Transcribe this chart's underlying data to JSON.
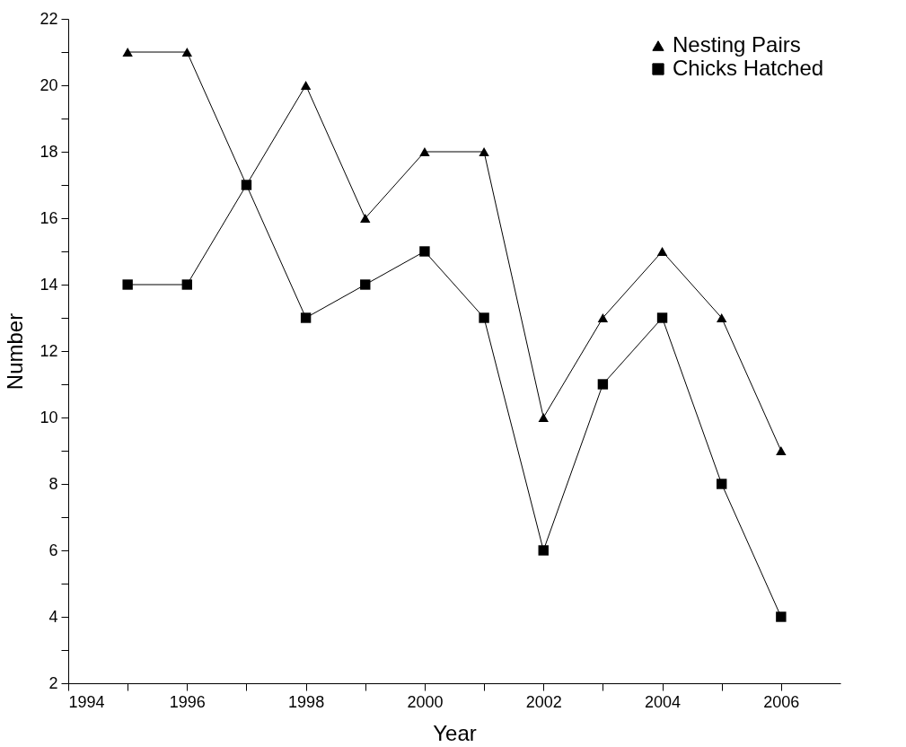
{
  "chart_data": {
    "type": "line",
    "xlabel": "Year",
    "ylabel": "Number",
    "x": [
      1995,
      1996,
      1997,
      1998,
      1999,
      2000,
      2001,
      2002,
      2003,
      2004,
      2005,
      2006
    ],
    "series": [
      {
        "name": "Nesting Pairs",
        "color": "#000000",
        "marker": "triangle",
        "values": [
          21,
          21,
          17,
          20,
          16,
          18,
          18,
          10,
          13,
          15,
          13,
          9
        ]
      },
      {
        "name": "Chicks Hatched",
        "color": "#000000",
        "marker": "square",
        "values": [
          14,
          14,
          17,
          13,
          14,
          15,
          13,
          6,
          11,
          13,
          8,
          4
        ]
      }
    ],
    "xlim": [
      1994,
      2007
    ],
    "xticks": [
      1994,
      {
        "value": 1995,
        "label": null
      },
      1996,
      {
        "value": 1997,
        "label": null
      },
      1998,
      {
        "value": 1999,
        "label": null
      },
      2000,
      {
        "value": 2001,
        "label": null
      },
      2002,
      {
        "value": 2003,
        "label": null
      },
      2004,
      {
        "value": 2005,
        "label": null
      },
      2006
    ],
    "ylim": [
      2,
      22
    ],
    "yticks": [
      2,
      {
        "value": 3,
        "label": null
      },
      4,
      {
        "value": 5,
        "label": null
      },
      6,
      {
        "value": 7,
        "label": null
      },
      8,
      {
        "value": 9,
        "label": null
      },
      10,
      {
        "value": 11,
        "label": null
      },
      12,
      {
        "value": 13,
        "label": null
      },
      14,
      {
        "value": 15,
        "label": null
      },
      16,
      {
        "value": 17,
        "label": null
      },
      18,
      {
        "value": 19,
        "label": null
      },
      20,
      {
        "value": 21,
        "label": null
      },
      22
    ],
    "grid": false,
    "legend": "top right",
    "line_style": "solid"
  }
}
